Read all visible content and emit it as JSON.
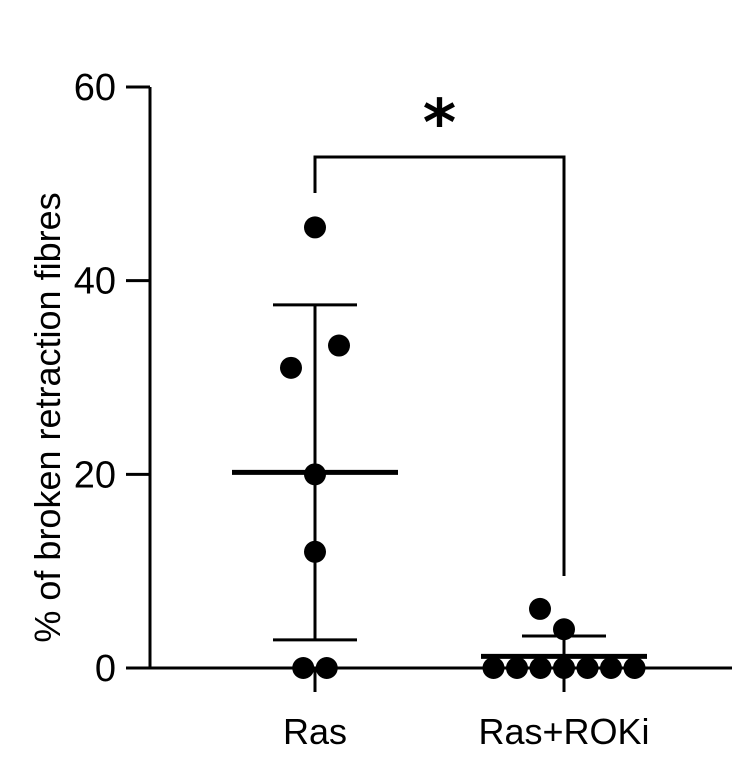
{
  "chart_data": {
    "type": "scatter",
    "ylabel": "% of broken retraction fibres",
    "xlabel": "",
    "ylim": [
      0,
      60
    ],
    "yticks": [
      0,
      20,
      40,
      60
    ],
    "grid": false,
    "groups": [
      {
        "label": "Ras",
        "points": [
          45.5,
          33.3,
          31.0,
          20.0,
          12.0,
          0,
          0
        ],
        "mean": 20.2,
        "sd_low": 2.9,
        "sd_high": 37.5
      },
      {
        "label": "Ras+ROKi",
        "points": [
          6.1,
          4.0,
          0,
          0,
          0,
          0,
          0,
          0,
          0
        ],
        "mean": 1.2,
        "sd_low": 0,
        "sd_high": 3.3
      }
    ],
    "annotation": {
      "text": "*",
      "between": [
        "Ras",
        "Ras+ROKi"
      ]
    }
  }
}
